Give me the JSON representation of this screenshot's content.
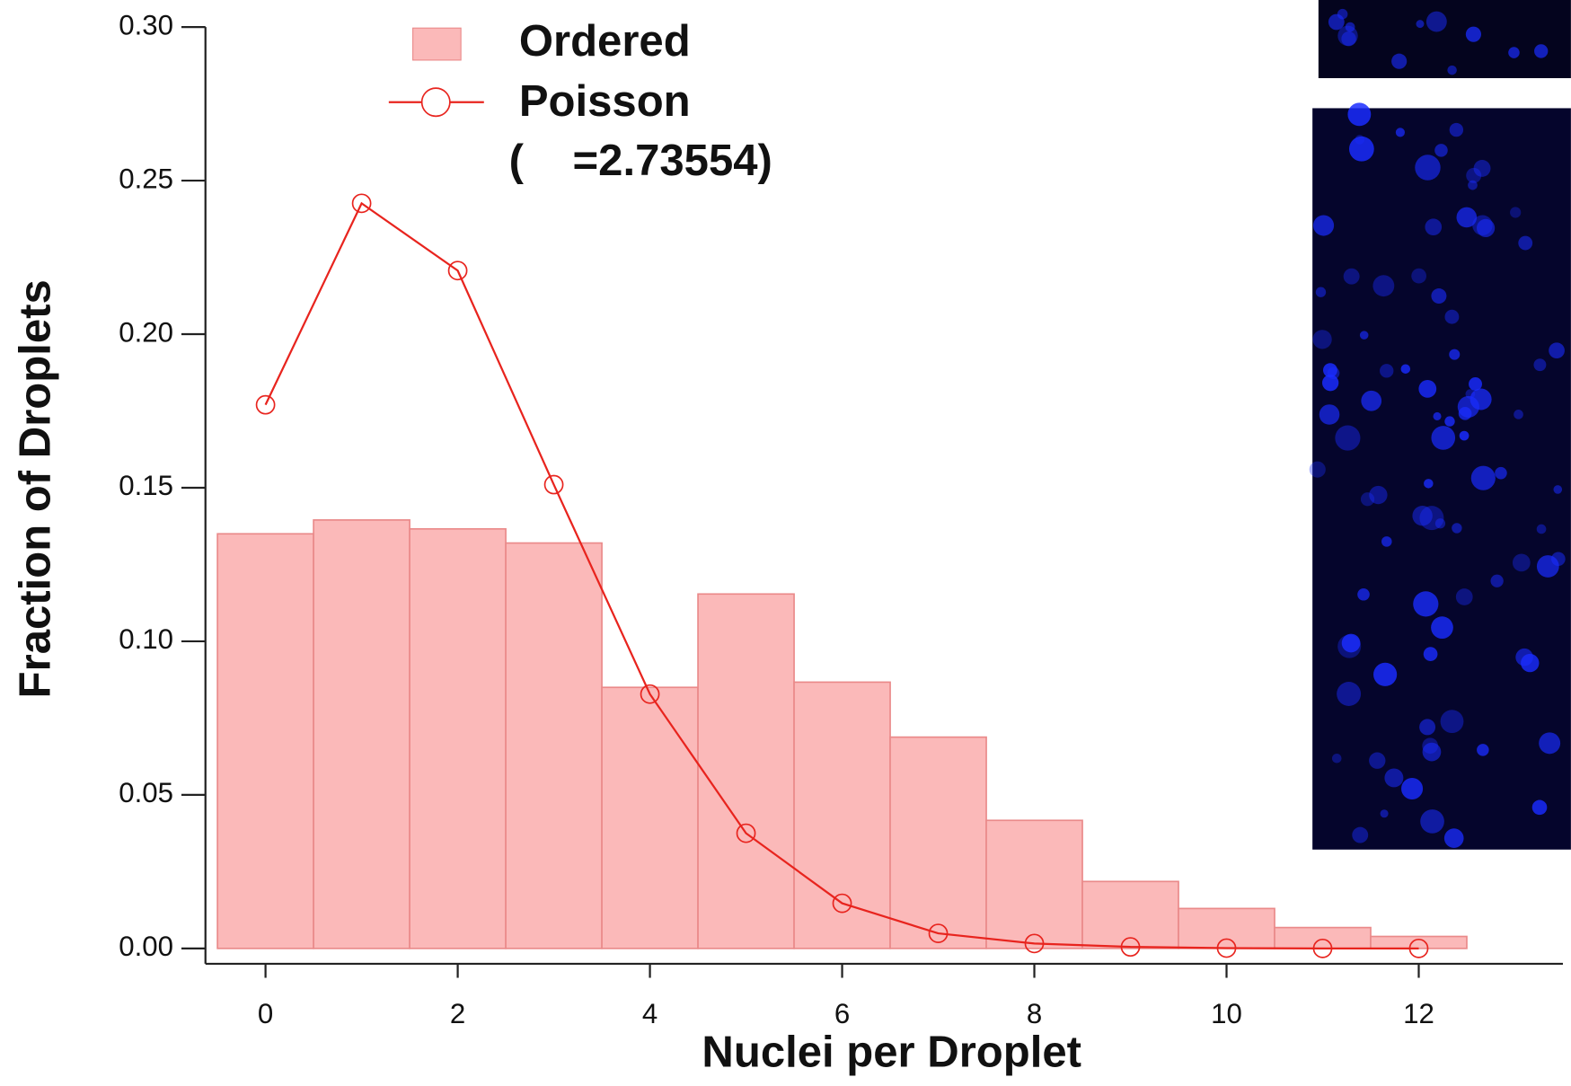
{
  "chart_data": {
    "type": "histogram",
    "xlabel": "Nuclei per Droplet",
    "ylabel": "Fraction of Droplets",
    "annotation": "(    =2.73554)",
    "xlim": [
      -0.625,
      13.5
    ],
    "xticks": [
      0,
      2,
      4,
      6,
      8,
      10,
      12
    ],
    "ylim": [
      -0.005,
      0.3
    ],
    "yticks": [
      {
        "value": 0,
        "label": "0.00"
      },
      {
        "value": 0.05,
        "label": "0.05"
      },
      {
        "value": 0.1,
        "label": "0.10"
      },
      {
        "value": 0.15,
        "label": "0.15"
      },
      {
        "value": 0.2,
        "label": "0.20"
      },
      {
        "value": 0.25,
        "label": "0.25"
      },
      {
        "value": 0.3,
        "label": "0.30"
      }
    ],
    "series": [
      {
        "name": "Ordered",
        "type": "histogram",
        "color": "#fbb9b9",
        "bins": [
          -0.5,
          0.5,
          1.5,
          2.5,
          3.5,
          4.5,
          5.5,
          6.5,
          7.5,
          8.5,
          9.5,
          10.5,
          11.5,
          12.5
        ],
        "values": [
          0.135,
          0.1395,
          0.1366,
          0.132,
          0.085,
          0.1154,
          0.0867,
          0.0688,
          0.0417,
          0.0218,
          0.013,
          0.0068,
          0.0039
        ]
      },
      {
        "name": "Poisson",
        "type": "line",
        "color": "#e8241e",
        "x": [
          0,
          1,
          2,
          3,
          4,
          5,
          6,
          7,
          8,
          9,
          10,
          11,
          12
        ],
        "values": [
          0.177,
          0.2426,
          0.2207,
          0.151,
          0.0828,
          0.0375,
          0.0147,
          0.0049,
          0.0016,
          0.0005,
          0.0001,
          0,
          0
        ]
      }
    ]
  }
}
